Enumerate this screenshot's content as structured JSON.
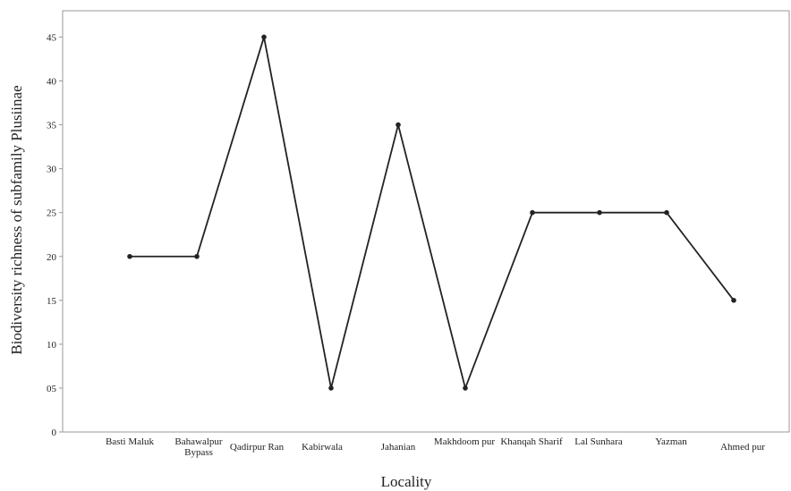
{
  "chart_data": {
    "type": "line",
    "title": "",
    "xlabel": "Locality",
    "ylabel": "Biodiversity richness of subfamily Plusiinae",
    "categories": [
      [
        "Basti Maluk"
      ],
      [
        "Bahawalpur",
        "Bypass"
      ],
      [
        "Qadirpur Ran"
      ],
      [
        "Kabirwala"
      ],
      [
        "Jahanian"
      ],
      [
        "Makhdoom pur"
      ],
      [
        "Khanqah Sharif"
      ],
      [
        "Lal Sunhara"
      ],
      [
        "Yazman"
      ],
      [
        "Ahmed pur"
      ]
    ],
    "series": [
      {
        "values": [
          20,
          20,
          45,
          5,
          35,
          5,
          25,
          25,
          25,
          15
        ]
      }
    ],
    "yticks": [
      {
        "value": 0,
        "label": "0"
      },
      {
        "value": 5,
        "label": "05"
      },
      {
        "value": 10,
        "label": "10"
      },
      {
        "value": 15,
        "label": "15"
      },
      {
        "value": 20,
        "label": "20"
      },
      {
        "value": 25,
        "label": "25"
      },
      {
        "value": 30,
        "label": "30"
      },
      {
        "value": 35,
        "label": "35"
      },
      {
        "value": 40,
        "label": "40"
      },
      {
        "value": 45,
        "label": "45"
      }
    ],
    "ylim": [
      0,
      48
    ],
    "grid": false,
    "legend": "none",
    "line_color": "#222222",
    "frame_color": "#999999"
  }
}
